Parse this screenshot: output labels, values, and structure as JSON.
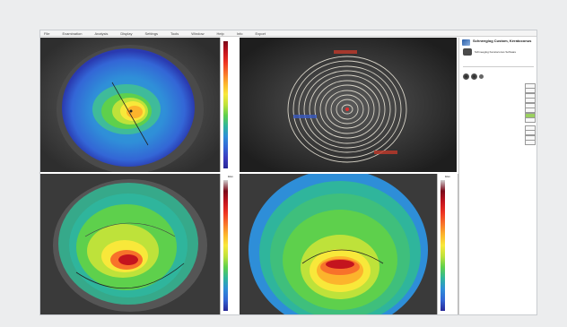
{
  "menu": [
    "File",
    "Examination",
    "Analysis",
    "Display",
    "Settings",
    "Tools",
    "Window",
    "Help",
    "Info",
    "Export"
  ],
  "colors": {
    "scale": [
      "#7a0a1a",
      "#c4141e",
      "#ee3322",
      "#f8722a",
      "#fcb42c",
      "#f8e83a",
      "#bee23a",
      "#5ed04c",
      "#2fb59c",
      "#2e8ed8",
      "#3366d6",
      "#3c3cc0",
      "#282898"
    ]
  },
  "scales": {
    "top": {
      "unit": "",
      "ticks": [
        "",
        "",
        "",
        "",
        "",
        "",
        "",
        "",
        "",
        "",
        "",
        "",
        "",
        "",
        "",
        "",
        "",
        "",
        ""
      ]
    },
    "bottom_left": {
      "unit": "Elev",
      "ticks": [
        "",
        "",
        "",
        "",
        "",
        "",
        "",
        "",
        "",
        "",
        "",
        "",
        "",
        "",
        "",
        "",
        "",
        "",
        ""
      ]
    },
    "bottom_right": {
      "unit": "Elev",
      "ticks": [
        "",
        "",
        "",
        "",
        "",
        "",
        "",
        "",
        "",
        "",
        "",
        "",
        "",
        "",
        "",
        "",
        "",
        "",
        ""
      ]
    }
  },
  "placido": {
    "labels": [
      "",
      "",
      ""
    ]
  },
  "panel": {
    "title": "Schneeglog Custom, Keratoconus",
    "subtitle": "",
    "program": "Schneeglog Keratoconus Software",
    "section_title": "",
    "section2_title": "",
    "lines": [
      "",
      "",
      "",
      "",
      ""
    ],
    "rows": [
      {
        "label": "",
        "value": ""
      },
      {
        "label": "",
        "value": ""
      },
      {
        "label": "",
        "value": ""
      },
      {
        "label": "",
        "value": ""
      },
      {
        "label": "",
        "value": ""
      },
      {
        "label": "",
        "value": ""
      },
      {
        "label": "",
        "value": ""
      },
      {
        "label": "",
        "value": ""
      },
      {
        "label": "",
        "value": ""
      },
      {
        "label": "",
        "value": ""
      },
      {
        "label": "",
        "value": ""
      },
      {
        "label": "",
        "value": ""
      }
    ]
  }
}
